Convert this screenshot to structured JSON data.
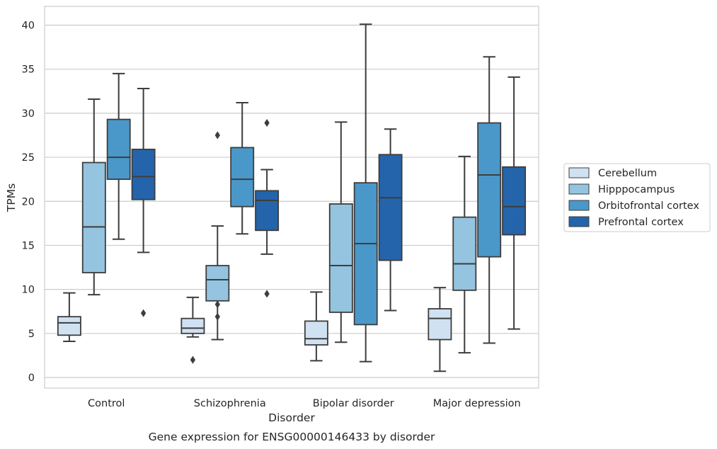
{
  "chart_data": {
    "type": "box",
    "title": "",
    "caption": "Gene expression for ENSG00000146433 by disorder",
    "xlabel": "Disorder",
    "ylabel": "TPMs",
    "ylim": [
      -1.2,
      42.2
    ],
    "yticks": [
      0,
      5,
      10,
      15,
      20,
      25,
      30,
      35,
      40
    ],
    "grid": "horizontal",
    "legend_position": "right",
    "categories": [
      "Control",
      "Schizophrenia",
      "Bipolar disorder",
      "Major depression"
    ],
    "series": [
      {
        "name": "Cerebellum",
        "color": "#d0e1f2",
        "boxes": [
          {
            "whisker_low": 4.1,
            "q1": 4.8,
            "median": 6.2,
            "q3": 6.9,
            "whisker_high": 9.6,
            "outliers": []
          },
          {
            "whisker_low": 4.6,
            "q1": 5.0,
            "median": 5.6,
            "q3": 6.7,
            "whisker_high": 9.1,
            "outliers": [
              2.0
            ]
          },
          {
            "whisker_low": 1.9,
            "q1": 3.7,
            "median": 4.4,
            "q3": 6.4,
            "whisker_high": 9.7,
            "outliers": []
          },
          {
            "whisker_low": 0.7,
            "q1": 4.3,
            "median": 6.7,
            "q3": 7.8,
            "whisker_high": 10.2,
            "outliers": []
          }
        ]
      },
      {
        "name": "Hipppocampus",
        "color": "#94c4df",
        "boxes": [
          {
            "whisker_low": 9.4,
            "q1": 11.9,
            "median": 17.1,
            "q3": 24.4,
            "whisker_high": 31.6,
            "outliers": []
          },
          {
            "whisker_low": 4.3,
            "q1": 8.7,
            "median": 11.1,
            "q3": 12.7,
            "whisker_high": 17.2,
            "outliers": [
              27.5,
              8.3,
              6.9
            ]
          },
          {
            "whisker_low": 4.0,
            "q1": 7.4,
            "median": 12.7,
            "q3": 19.7,
            "whisker_high": 29.0,
            "outliers": []
          },
          {
            "whisker_low": 2.8,
            "q1": 9.9,
            "median": 12.9,
            "q3": 18.2,
            "whisker_high": 25.1,
            "outliers": []
          }
        ]
      },
      {
        "name": "Orbitofrontal cortex",
        "color": "#4a98c9",
        "boxes": [
          {
            "whisker_low": 15.7,
            "q1": 22.5,
            "median": 25.0,
            "q3": 29.3,
            "whisker_high": 34.5,
            "outliers": []
          },
          {
            "whisker_low": 16.3,
            "q1": 19.4,
            "median": 22.5,
            "q3": 26.1,
            "whisker_high": 31.2,
            "outliers": []
          },
          {
            "whisker_low": 1.8,
            "q1": 6.0,
            "median": 15.2,
            "q3": 22.1,
            "whisker_high": 40.1,
            "outliers": []
          },
          {
            "whisker_low": 3.9,
            "q1": 13.7,
            "median": 23.0,
            "q3": 28.9,
            "whisker_high": 36.4,
            "outliers": []
          }
        ]
      },
      {
        "name": "Prefrontal cortex",
        "color": "#2464ab",
        "boxes": [
          {
            "whisker_low": 14.2,
            "q1": 20.2,
            "median": 22.8,
            "q3": 25.9,
            "whisker_high": 32.8,
            "outliers": [
              7.3
            ]
          },
          {
            "whisker_low": 14.0,
            "q1": 16.7,
            "median": 20.1,
            "q3": 21.2,
            "whisker_high": 23.6,
            "outliers": [
              28.9,
              9.5
            ]
          },
          {
            "whisker_low": 7.6,
            "q1": 13.3,
            "median": 20.4,
            "q3": 25.3,
            "whisker_high": 28.2,
            "outliers": []
          },
          {
            "whisker_low": 5.5,
            "q1": 16.2,
            "median": 19.4,
            "q3": 23.9,
            "whisker_high": 34.1,
            "outliers": []
          }
        ]
      }
    ]
  }
}
